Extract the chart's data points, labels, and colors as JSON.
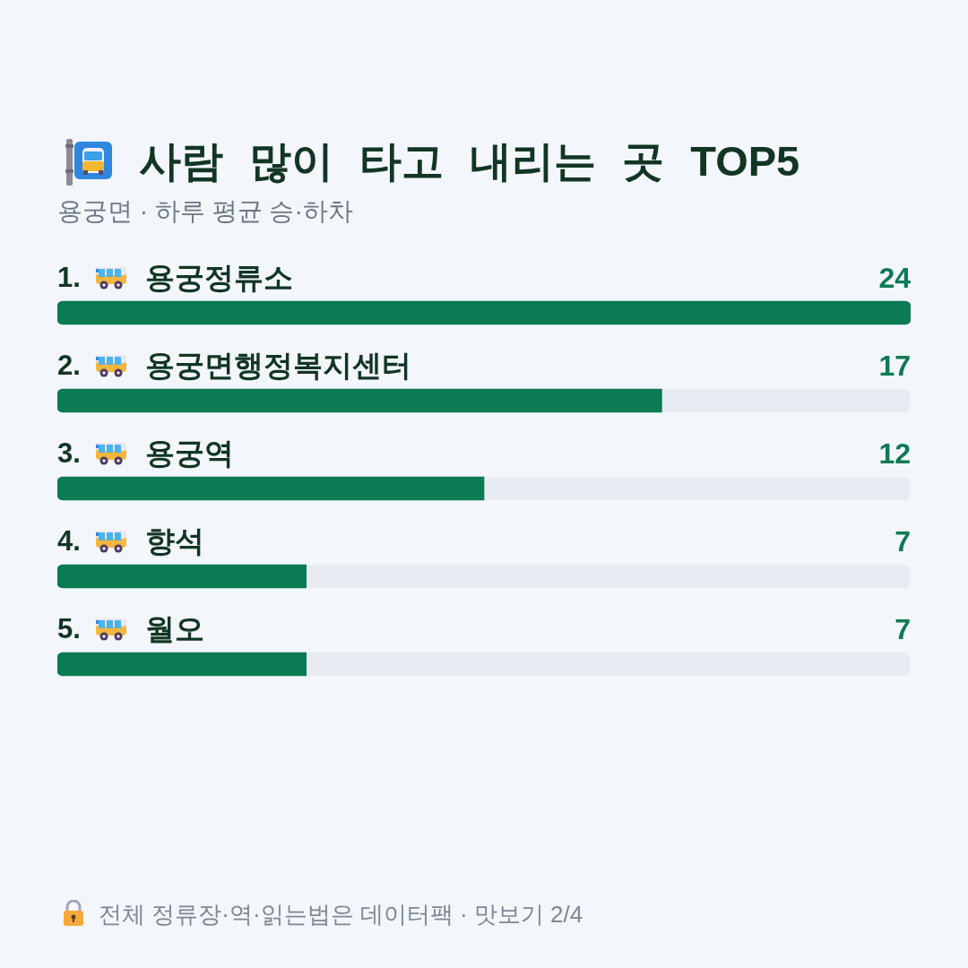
{
  "chart_data": {
    "type": "bar",
    "orientation": "horizontal",
    "title": "사람 많이 타고 내리는 곳 TOP5",
    "subtitle": "용궁면 · 하루 평균 승·하차",
    "categories": [
      "1. 용궁정류소",
      "2. 용궁면행정복지센터",
      "3. 용궁역",
      "4. 향석",
      "5. 월오"
    ],
    "values": [
      24,
      17,
      12,
      7,
      7
    ],
    "color": "#0b7b53",
    "xlim": [
      0,
      24
    ],
    "tick_labels": "y",
    "data_labels": true,
    "annotations": [
      "전체 정류장·역·읽는법은 데이터팩 · 맛보기 2/4"
    ]
  }
}
